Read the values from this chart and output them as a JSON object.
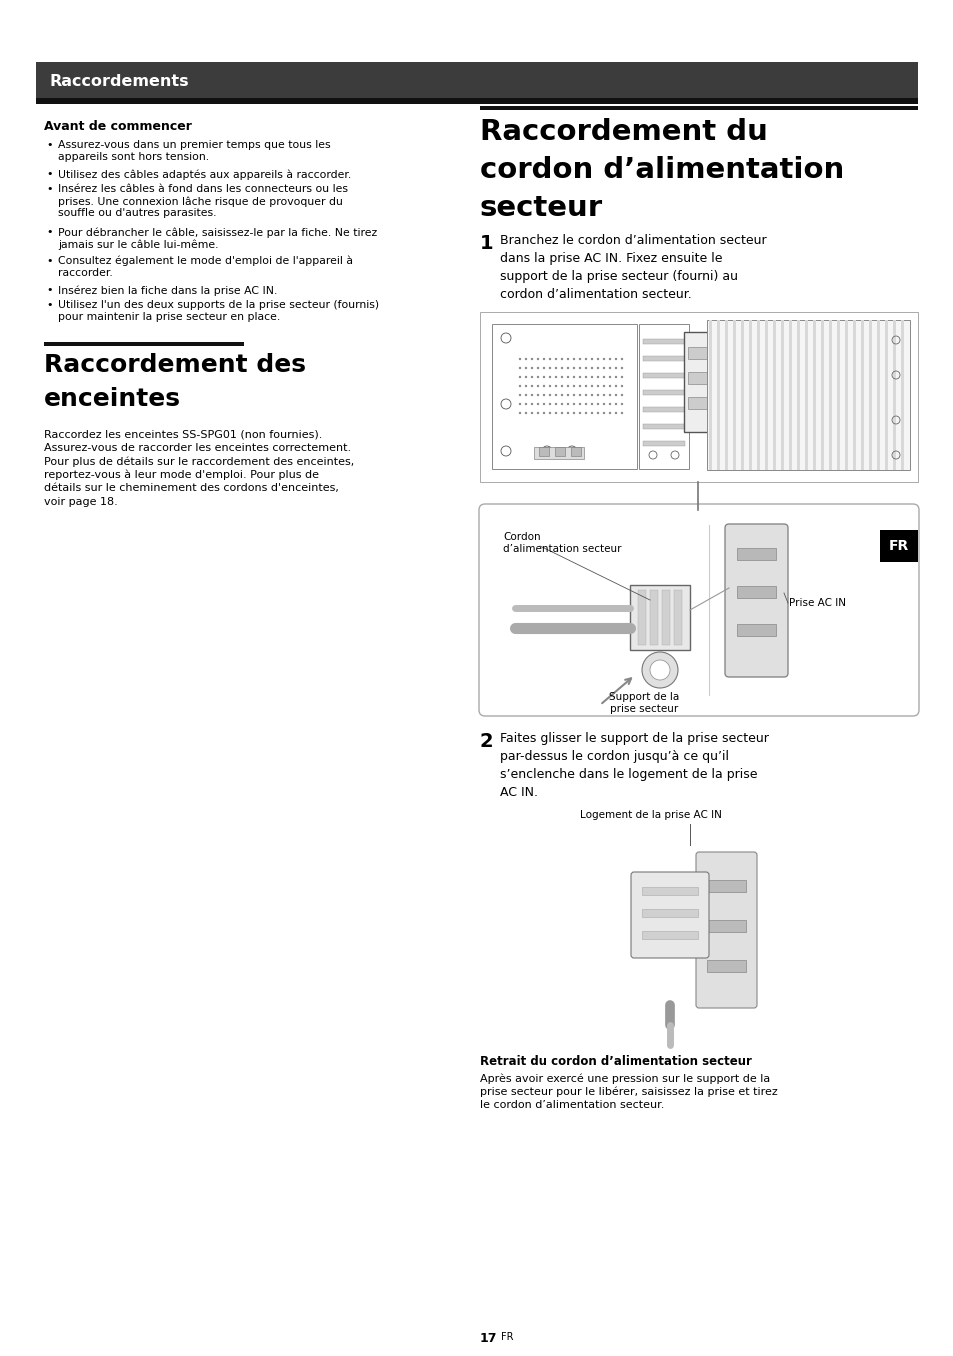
{
  "page_bg": "#ffffff",
  "header_bg": "#3c3c3c",
  "header_text": "Raccordements",
  "header_text_color": "#ffffff",
  "section1_title": "Avant de commencer",
  "section1_bullets": [
    "Assurez-vous dans un premier temps que tous les\nappareils sont hors tension.",
    "Utilisez des câbles adaptés aux appareils à raccorder.",
    "Insérez les câbles à fond dans les connecteurs ou les\nprises. Une connexion lâche risque de provoquer du\nsouffle ou d'autres parasites.",
    "Pour débrancher le câble, saisissez-le par la fiche. Ne tirez\njamais sur le câble lui-même.",
    "Consultez également le mode d'emploi de l'appareil à\nraccorder.",
    "Insérez bien la fiche dans la prise AC IN.",
    "Utilisez l'un des deux supports de la prise secteur (fournis)\npour maintenir la prise secteur en place."
  ],
  "section2_title_line1": "Raccordement des",
  "section2_title_line2": "enceintes",
  "section2_body": "Raccordez les enceintes SS-SPG01 (non fournies).\nAssurez-vous de raccorder les enceintes correctement.\nPour plus de détails sur le raccordement des enceintes,\nreportez-vous à leur mode d'emploi. Pour plus de\ndétails sur le cheminement des cordons d'enceintes,\nvoir page 18.",
  "section3_title_line1": "Raccordement du",
  "section3_title_line2": "cordon d’alimentation",
  "section3_title_line3": "secteur",
  "step1_num": "1",
  "step1_text": "Branchez le cordon d’alimentation secteur\ndans la prise AC IN. Fixez ensuite le\nsupport de la prise secteur (fourni) au\ncordon d’alimentation secteur.",
  "label_cordon": "Cordon\nd’alimentation secteur",
  "label_prise_ac_in": "Prise AC IN",
  "label_support": "Support de la\nprise secteur",
  "step2_num": "2",
  "step2_text": "Faites glisser le support de la prise secteur\npar-dessus le cordon jusqu’à ce qu’il\ns’enclenche dans le logement de la prise\nAC IN.",
  "label_logement": "Logement de la prise AC IN",
  "retrait_title": "Retrait du cordon d’alimentation secteur",
  "retrait_body": "Après avoir exercé une pression sur le support de la\nprise secteur pour le libérer, saisissez la prise et tirez\nle cordon d’alimentation secteur.",
  "fr_label": "FR",
  "page_number": "17",
  "page_number_suffix": "FR"
}
